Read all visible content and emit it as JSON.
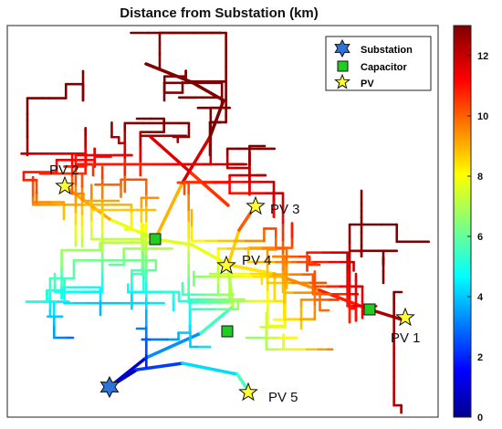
{
  "chart_data": {
    "type": "network-map",
    "title": "Distance from Substation (km)",
    "legend": {
      "placement": "top-right",
      "entries": [
        {
          "name": "Substation",
          "marker": "hexagram",
          "color": "#2e74d8"
        },
        {
          "name": "Capacitor",
          "marker": "square",
          "color": "#22cc22"
        },
        {
          "name": "PV",
          "marker": "pentagram",
          "color": "#ffff33"
        }
      ]
    },
    "colorbar": {
      "min": 0,
      "max": 13,
      "ticks": [
        0,
        2,
        4,
        6,
        8,
        10,
        12
      ],
      "tick_labels": [
        "0",
        "2",
        "4",
        "6",
        "8",
        "10",
        "12"
      ],
      "colormap": "jet"
    },
    "pv_sites": [
      {
        "label": "PV 1"
      },
      {
        "label": "PV 2"
      },
      {
        "label": "PV 3"
      },
      {
        "label": "PV 4"
      },
      {
        "label": "PV 5"
      }
    ],
    "capacitors": 3,
    "substations": 1,
    "axes_ticks_visible": false
  }
}
